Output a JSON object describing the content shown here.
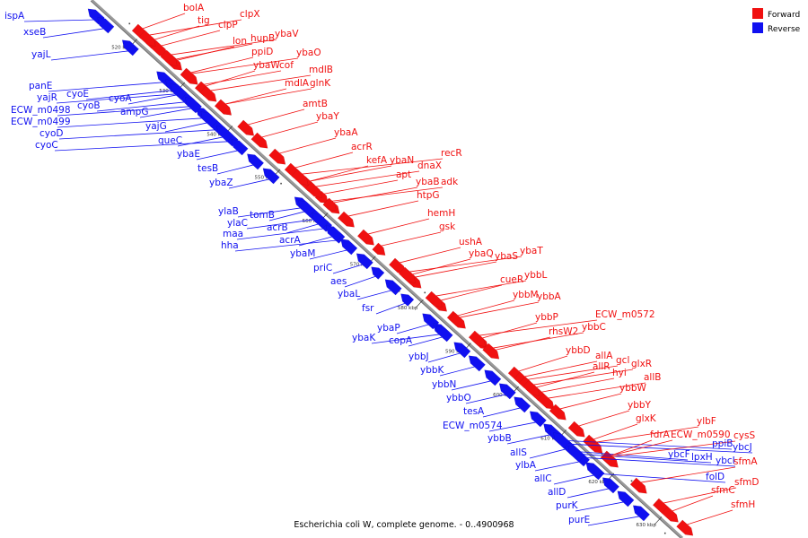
{
  "colors": {
    "forward": "#f01010",
    "reverse": "#1010f0",
    "backbone": "#999999",
    "tick": "#222222"
  },
  "legend": {
    "forward_label": "Forward",
    "reverse_label": "Reverse"
  },
  "caption": "Escherichia coli W, complete genome. - 0..4900968",
  "ticks": [
    "520 kbp",
    "530 kbp",
    "540 kbp",
    "550 kbp",
    "560 kbp",
    "570 kbp",
    "580 kbp",
    "590 kbp",
    "600 kbp",
    "610 kbp",
    "620 kbp",
    "630 kbp"
  ],
  "reverse_genes": [
    "ispA",
    "xseB",
    "yajL",
    "panE",
    "yajR",
    "cyoE",
    "ECW_m0498",
    "cyoB",
    "ECW_m0499",
    "cyoD",
    "cyoC",
    "cyoA",
    "ampG",
    "yajG",
    "queC",
    "ybaE",
    "tesB",
    "ybaZ",
    "ylaB",
    "ylaC",
    "tomB",
    "maa",
    "hha",
    "acrB",
    "acrA",
    "ybaM",
    "priC",
    "aes",
    "ybaL",
    "fsr",
    "ybaP",
    "ybaK",
    "copA",
    "ybbJ",
    "ybbK",
    "ybbN",
    "ybbO",
    "tesA",
    "ECW_m0574",
    "ybbB",
    "allS",
    "ylbA",
    "allC",
    "allD",
    "purK",
    "purE",
    "ybcF",
    "lpxH",
    "ppiB",
    "ybcJ",
    "ybcI",
    "folD"
  ],
  "forward_genes": [
    "bolA",
    "tig",
    "clpP",
    "clpX",
    "lon",
    "hupB",
    "ppiD",
    "ybaV",
    "ybaW",
    "cof",
    "ybaO",
    "mdlB",
    "mdlA",
    "glnK",
    "amtB",
    "ybaY",
    "ybaA",
    "acrR",
    "kefA",
    "ybaN",
    "recR",
    "apt",
    "dnaX",
    "ybaB",
    "adk",
    "htpG",
    "hemH",
    "gsk",
    "ushA",
    "ybaQ",
    "ybaS",
    "ybaT",
    "cueR",
    "ybbL",
    "ybbM",
    "ybbA",
    "ybbP",
    "ECW_m0572",
    "rhsW2",
    "ybbC",
    "ybbD",
    "allA",
    "allR",
    "gcl",
    "hyi",
    "glxR",
    "allB",
    "ybbW",
    "ybbY",
    "glxK",
    "ylbF",
    "fdrA",
    "ECW_m0590",
    "cysS",
    "sfmA",
    "sfmD",
    "sfmC",
    "sfmH"
  ]
}
